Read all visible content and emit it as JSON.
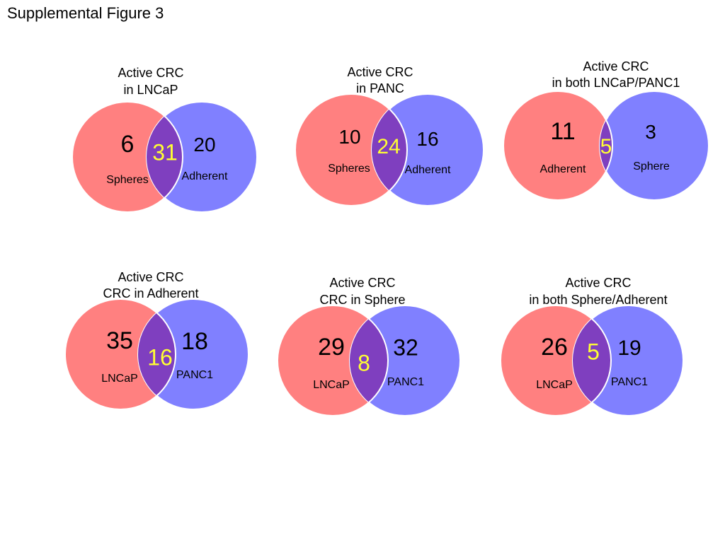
{
  "figure_title": "Supplemental Figure 3",
  "colors": {
    "left_circle": "#ff8080",
    "right_circle": "#8080ff",
    "overlap": "#7f3fbf",
    "overlap_number": "#ffff33",
    "circle_border": "#ffffff"
  },
  "venns": [
    {
      "title_lines": [
        "Active CRC",
        "in LNCaP"
      ],
      "left": {
        "label": "Spheres",
        "count": "6"
      },
      "right": {
        "label": "Adherent",
        "count": "20"
      },
      "overlap": "31"
    },
    {
      "title_lines": [
        "Active CRC",
        "in PANC"
      ],
      "left": {
        "label": "Spheres",
        "count": "10"
      },
      "right": {
        "label": "Adherent",
        "count": "16"
      },
      "overlap": "24"
    },
    {
      "title_lines": [
        "Active CRC",
        "in both LNCaP/PANC1"
      ],
      "left": {
        "label": "Adherent",
        "count": "11"
      },
      "right": {
        "label": "Sphere",
        "count": "3"
      },
      "overlap": "5"
    },
    {
      "title_lines": [
        "Active CRC",
        "CRC in Adherent"
      ],
      "left": {
        "label": "LNCaP",
        "count": "35"
      },
      "right": {
        "label": "PANC1",
        "count": "18"
      },
      "overlap": "16"
    },
    {
      "title_lines": [
        "Active CRC",
        "CRC in Sphere"
      ],
      "left": {
        "label": "LNCaP",
        "count": "29"
      },
      "right": {
        "label": "PANC1",
        "count": "32"
      },
      "overlap": "8"
    },
    {
      "title_lines": [
        "Active CRC",
        "in both Sphere/Adherent"
      ],
      "left": {
        "label": "LNCaP",
        "count": "26"
      },
      "right": {
        "label": "PANC1",
        "count": "19"
      },
      "overlap": "5"
    }
  ]
}
